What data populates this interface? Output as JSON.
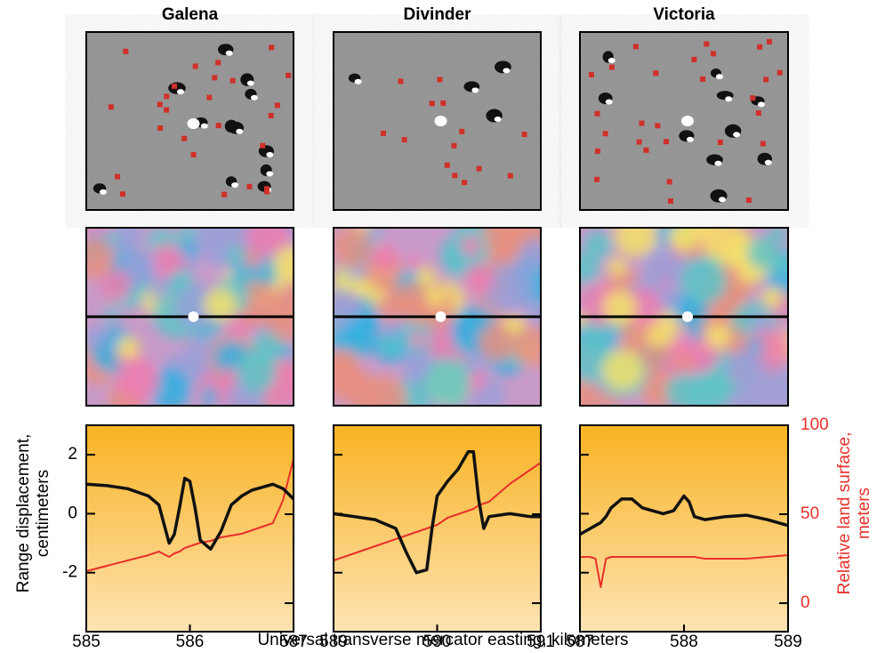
{
  "figure": {
    "x_label": "Universal transverse mercator easting, kilometers",
    "y_label": "Range displacement, centimeters",
    "y2_label": "Relative land surface, meters"
  },
  "chart_data": [
    {
      "type": "line",
      "title": "Galena",
      "x": [
        585,
        585.2,
        585.4,
        585.6,
        585.7,
        585.8,
        585.85,
        585.9,
        585.95,
        586,
        586.05,
        586.1,
        586.2,
        586.3,
        586.4,
        586.5,
        586.6,
        586.8,
        586.9,
        587
      ],
      "xlim": [
        585,
        587
      ],
      "xticks": [
        585,
        586,
        587
      ],
      "ylim": [
        -4,
        3
      ],
      "yticks": [
        -2,
        0,
        2
      ],
      "y2lim": [
        -16,
        100
      ],
      "y2ticks": [
        0,
        50,
        100
      ],
      "series": [
        {
          "color": "#111111",
          "values": [
            1.0,
            0.95,
            0.85,
            0.6,
            0.3,
            -1.0,
            -0.7,
            0.2,
            1.2,
            1.1,
            0.2,
            -0.9,
            -1.2,
            -0.6,
            0.3,
            0.6,
            0.8,
            1.0,
            0.85,
            0.5
          ]
        },
        {
          "color": "#e8302a",
          "axis": "y2",
          "values": [
            18,
            21,
            24,
            27,
            29,
            26,
            28,
            29,
            31,
            32,
            33,
            34,
            35,
            37,
            38,
            39,
            41,
            45,
            58,
            81
          ]
        }
      ]
    },
    {
      "type": "line",
      "title": "Divinder",
      "x": [
        589,
        589.2,
        589.4,
        589.6,
        589.7,
        589.8,
        589.9,
        589.95,
        590,
        590.1,
        590.2,
        590.3,
        590.35,
        590.4,
        590.45,
        590.5,
        590.7,
        590.9,
        591
      ],
      "xlim": [
        589,
        591
      ],
      "xticks": [
        589,
        590,
        591
      ],
      "ylim": [
        -4,
        3
      ],
      "yticks": [
        -2,
        0,
        2
      ],
      "y2lim": [
        -16,
        100
      ],
      "y2ticks": [
        0,
        50,
        100
      ],
      "series": [
        {
          "color": "#111111",
          "values": [
            0,
            -0.1,
            -0.2,
            -0.5,
            -1.3,
            -2.0,
            -1.9,
            -0.5,
            0.6,
            1.1,
            1.5,
            2.1,
            2.1,
            0.5,
            -0.5,
            -0.1,
            0.0,
            -0.1,
            -0.1
          ]
        },
        {
          "color": "#e8302a",
          "axis": "y2",
          "values": [
            24,
            28,
            32,
            36,
            38,
            40,
            42,
            43,
            44,
            48,
            50,
            52,
            53,
            55,
            56,
            57,
            67,
            75,
            79
          ]
        }
      ]
    },
    {
      "type": "line",
      "title": "Victoria",
      "x": [
        587,
        587.1,
        587.15,
        587.2,
        587.25,
        587.3,
        587.4,
        587.5,
        587.6,
        587.8,
        587.9,
        588,
        588.05,
        588.1,
        588.2,
        588.4,
        588.6,
        588.8,
        589
      ],
      "xlim": [
        587,
        589
      ],
      "xticks": [
        587,
        588,
        589
      ],
      "ylim": [
        -4,
        3
      ],
      "yticks": [
        -2,
        0,
        2
      ],
      "y2lim": [
        -16,
        100
      ],
      "y2ticks": [
        0,
        50,
        100
      ],
      "series": [
        {
          "color": "#111111",
          "values": [
            -0.7,
            -0.5,
            -0.4,
            -0.3,
            -0.1,
            0.2,
            0.5,
            0.5,
            0.2,
            0.0,
            0.1,
            0.6,
            0.4,
            -0.1,
            -0.2,
            -0.1,
            -0.05,
            -0.2,
            -0.4
          ]
        },
        {
          "color": "#e8302a",
          "axis": "y2",
          "values": [
            26,
            26,
            25,
            9,
            25,
            26,
            26,
            26,
            26,
            26,
            26,
            26,
            26,
            26,
            25,
            25,
            25,
            26,
            27
          ]
        }
      ]
    }
  ]
}
